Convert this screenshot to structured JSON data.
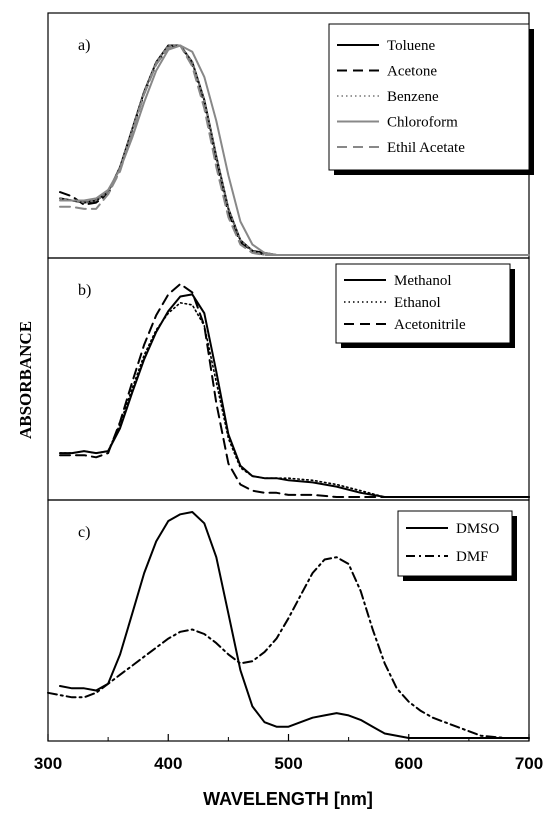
{
  "chart_data": {
    "type": "line",
    "xlabel": "WAVELENGTH [nm]",
    "ylabel": "ABSORBANCE",
    "xlim": [
      300,
      700
    ],
    "x_ticks": [
      300,
      400,
      500,
      600,
      700
    ],
    "y_ticks_shown": false,
    "grid": false,
    "panels": [
      {
        "label": "a)",
        "ylim": [
          0,
          1.05
        ],
        "legend_position": "top-right",
        "series": [
          {
            "name": "Toluene",
            "color": "#000000",
            "dash": "solid",
            "x": [
              310,
              320,
              330,
              340,
              350,
              360,
              370,
              380,
              390,
              400,
              410,
              420,
              430,
              440,
              450,
              460,
              470,
              480,
              490,
              500,
              600,
              700
            ],
            "y": [
              0.27,
              0.26,
              0.25,
              0.26,
              0.3,
              0.42,
              0.6,
              0.78,
              0.92,
              1.0,
              1.0,
              0.92,
              0.74,
              0.47,
              0.22,
              0.07,
              0.02,
              0.01,
              0.0,
              0.0,
              0.0,
              0.0
            ]
          },
          {
            "name": "Acetone",
            "color": "#000000",
            "dash": "long-dash",
            "x": [
              310,
              320,
              330,
              340,
              350,
              360,
              370,
              380,
              390,
              400,
              410,
              420,
              430,
              440,
              450,
              460,
              470,
              480,
              500,
              600,
              700
            ],
            "y": [
              0.3,
              0.28,
              0.24,
              0.25,
              0.29,
              0.41,
              0.59,
              0.77,
              0.91,
              0.99,
              1.0,
              0.91,
              0.72,
              0.44,
              0.2,
              0.06,
              0.02,
              0.0,
              0.0,
              0.0,
              0.0
            ]
          },
          {
            "name": "Benzene",
            "color": "#777777",
            "dash": "dotted",
            "x": [
              310,
              320,
              330,
              340,
              350,
              360,
              370,
              380,
              390,
              400,
              410,
              420,
              430,
              440,
              450,
              460,
              470,
              480,
              500,
              600,
              700
            ],
            "y": [
              0.27,
              0.26,
              0.25,
              0.26,
              0.3,
              0.42,
              0.6,
              0.78,
              0.92,
              1.0,
              1.0,
              0.92,
              0.74,
              0.47,
              0.22,
              0.07,
              0.02,
              0.0,
              0.0,
              0.0,
              0.0
            ]
          },
          {
            "name": "Chloroform",
            "color": "#888888",
            "dash": "solid",
            "x": [
              310,
              320,
              330,
              340,
              350,
              360,
              370,
              380,
              390,
              400,
              410,
              420,
              430,
              440,
              450,
              460,
              470,
              480,
              490,
              500,
              600,
              700
            ],
            "y": [
              0.26,
              0.26,
              0.26,
              0.27,
              0.31,
              0.41,
              0.56,
              0.73,
              0.88,
              0.98,
              1.0,
              0.97,
              0.85,
              0.64,
              0.38,
              0.16,
              0.05,
              0.01,
              0.0,
              0.0,
              0.0,
              0.0
            ]
          },
          {
            "name": "Ethil Acetate",
            "color": "#888888",
            "dash": "long-dash",
            "x": [
              310,
              320,
              330,
              340,
              350,
              360,
              370,
              380,
              390,
              400,
              410,
              420,
              430,
              440,
              450,
              460,
              470,
              480,
              500,
              600,
              700
            ],
            "y": [
              0.23,
              0.23,
              0.22,
              0.22,
              0.29,
              0.4,
              0.58,
              0.77,
              0.91,
              0.99,
              1.0,
              0.9,
              0.7,
              0.42,
              0.18,
              0.05,
              0.01,
              0.0,
              0.0,
              0.0,
              0.0
            ]
          }
        ]
      },
      {
        "label": "b)",
        "ylim": [
          0,
          1.02
        ],
        "legend_position": "top-right",
        "series": [
          {
            "name": "Methanol",
            "color": "#000000",
            "dash": "solid",
            "x": [
              310,
              320,
              330,
              340,
              350,
              360,
              370,
              380,
              390,
              400,
              410,
              420,
              430,
              440,
              450,
              460,
              470,
              480,
              490,
              500,
              520,
              540,
              560,
              580,
              600,
              700
            ],
            "y": [
              0.21,
              0.21,
              0.22,
              0.21,
              0.22,
              0.33,
              0.5,
              0.66,
              0.79,
              0.89,
              0.96,
              0.97,
              0.88,
              0.6,
              0.3,
              0.15,
              0.1,
              0.09,
              0.09,
              0.08,
              0.07,
              0.05,
              0.02,
              0.0,
              0.0,
              0.0
            ]
          },
          {
            "name": "Ethanol",
            "color": "#000000",
            "dash": "dotted",
            "x": [
              310,
              320,
              330,
              340,
              350,
              360,
              370,
              380,
              390,
              400,
              410,
              420,
              430,
              440,
              450,
              460,
              470,
              480,
              500,
              520,
              540,
              560,
              580,
              600,
              700
            ],
            "y": [
              0.21,
              0.21,
              0.22,
              0.21,
              0.22,
              0.35,
              0.52,
              0.68,
              0.8,
              0.88,
              0.93,
              0.92,
              0.82,
              0.55,
              0.28,
              0.14,
              0.1,
              0.09,
              0.09,
              0.08,
              0.06,
              0.03,
              0.0,
              0.0,
              0.0
            ]
          },
          {
            "name": "Acetonitrile",
            "color": "#000000",
            "dash": "long-dash",
            "x": [
              310,
              320,
              330,
              340,
              350,
              360,
              370,
              380,
              390,
              400,
              410,
              420,
              430,
              440,
              450,
              460,
              470,
              480,
              490,
              500,
              520,
              540,
              560,
              600,
              700
            ],
            "y": [
              0.2,
              0.2,
              0.2,
              0.19,
              0.21,
              0.36,
              0.55,
              0.73,
              0.87,
              0.97,
              1.02,
              0.98,
              0.82,
              0.45,
              0.16,
              0.06,
              0.03,
              0.02,
              0.02,
              0.01,
              0.01,
              0.0,
              0.0,
              0.0,
              0.0
            ]
          }
        ]
      },
      {
        "label": "c)",
        "ylim": [
          0,
          1.0
        ],
        "legend_position": "top-right",
        "series": [
          {
            "name": "DMSO",
            "color": "#000000",
            "dash": "solid",
            "x": [
              310,
              320,
              330,
              340,
              350,
              360,
              370,
              380,
              390,
              400,
              410,
              420,
              430,
              440,
              450,
              460,
              470,
              480,
              490,
              500,
              510,
              520,
              530,
              540,
              550,
              560,
              570,
              580,
              600,
              700
            ],
            "y": [
              0.23,
              0.22,
              0.22,
              0.21,
              0.24,
              0.37,
              0.55,
              0.73,
              0.87,
              0.96,
              0.99,
              1.0,
              0.95,
              0.8,
              0.55,
              0.3,
              0.14,
              0.07,
              0.05,
              0.05,
              0.07,
              0.09,
              0.1,
              0.11,
              0.1,
              0.08,
              0.05,
              0.02,
              0.0,
              0.0
            ]
          },
          {
            "name": "DMF",
            "color": "#000000",
            "dash": "dash-dot",
            "x": [
              300,
              310,
              320,
              330,
              340,
              350,
              360,
              370,
              380,
              390,
              400,
              410,
              420,
              430,
              440,
              450,
              460,
              470,
              480,
              490,
              500,
              510,
              520,
              530,
              540,
              550,
              560,
              570,
              580,
              590,
              600,
              610,
              620,
              640,
              660,
              680
            ],
            "y": [
              0.2,
              0.19,
              0.18,
              0.18,
              0.2,
              0.24,
              0.28,
              0.32,
              0.36,
              0.4,
              0.44,
              0.47,
              0.48,
              0.46,
              0.42,
              0.37,
              0.33,
              0.34,
              0.38,
              0.44,
              0.53,
              0.63,
              0.73,
              0.79,
              0.8,
              0.77,
              0.65,
              0.48,
              0.33,
              0.22,
              0.16,
              0.12,
              0.09,
              0.05,
              0.01,
              0.0
            ]
          }
        ]
      }
    ]
  }
}
